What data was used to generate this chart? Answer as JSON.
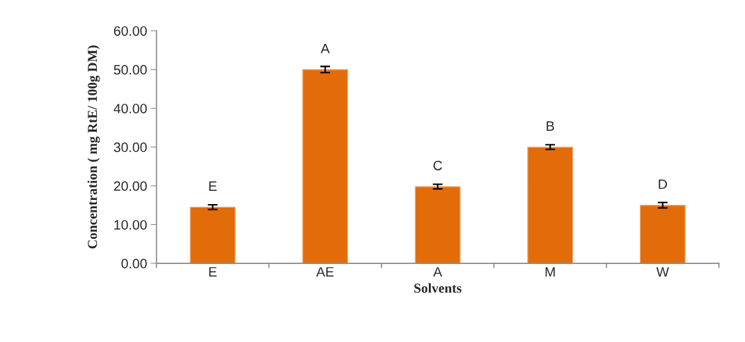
{
  "chart_data": {
    "type": "bar",
    "xlabel": "Solvents",
    "ylabel": "Concentration ( mg RtE/ 100g DM)",
    "categories": [
      "E",
      "AE",
      "A",
      "M",
      "W"
    ],
    "values": [
      14.5,
      50.0,
      19.8,
      30.0,
      15.0
    ],
    "errors": [
      0.6,
      0.8,
      0.6,
      0.6,
      0.7
    ],
    "color": "#e36c0a",
    "ylim": [
      0,
      60
    ],
    "yticks": [
      {
        "value": 0,
        "label": "0.00"
      },
      {
        "value": 10,
        "label": "10.00"
      },
      {
        "value": 20,
        "label": "20.00"
      },
      {
        "value": 30,
        "label": "30.00"
      },
      {
        "value": 40,
        "label": "40.00"
      },
      {
        "value": 50,
        "label": "50.00"
      },
      {
        "value": 60,
        "label": "60.00"
      }
    ],
    "annotations": [
      {
        "text": "E",
        "x": "E",
        "y": 14.5
      },
      {
        "text": "A",
        "x": "AE",
        "y": 50.0
      },
      {
        "text": "C",
        "x": "A",
        "y": 19.8
      },
      {
        "text": "B",
        "x": "M",
        "y": 30.0
      },
      {
        "text": "D",
        "x": "W",
        "y": 15.0
      }
    ],
    "grid": false
  }
}
